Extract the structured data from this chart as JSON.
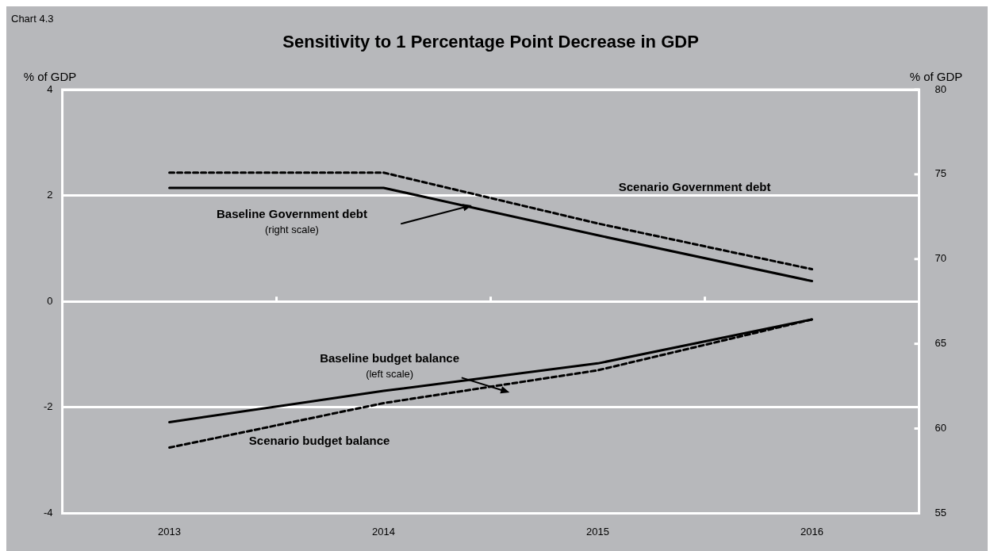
{
  "chart_data": {
    "type": "line",
    "title": "Sensitivity to 1 Percentage Point Decrease in GDP",
    "ylabel": "% of GDP",
    "y2label": "% of GDP",
    "categories": [
      "2013",
      "2014",
      "2015",
      "2016"
    ],
    "series": [
      {
        "name": "Baseline Government debt",
        "color": "#000000",
        "axis": "y2",
        "line_style": "solid",
        "values": [
          74.2,
          74.2,
          71.4,
          68.7
        ]
      },
      {
        "name": "Scenario Government debt",
        "color": "#000000",
        "axis": "y2",
        "line_style": "dashed",
        "values": [
          75.1,
          75.1,
          72.1,
          69.4
        ]
      },
      {
        "name": "Baseline budget balance",
        "color": "#000000",
        "line_style": "solid",
        "values": [
          -2.28,
          -1.69,
          -1.17,
          -0.34
        ]
      },
      {
        "name": "Scenario budget balance",
        "color": "#000000",
        "line_style": "dashed",
        "values": [
          -2.76,
          -1.92,
          -1.3,
          -0.34
        ]
      }
    ],
    "ylim": [
      -4,
      4
    ],
    "yticks": [
      -4,
      -2,
      0,
      2,
      4
    ],
    "y2lim": [
      55,
      80
    ],
    "y2ticks": [
      55,
      60,
      65,
      70,
      75,
      80
    ],
    "grid": "y",
    "legend": false,
    "marker": "none",
    "annotations": [
      "Chart 4.3",
      "(right scale)",
      "(left scale)"
    ]
  }
}
